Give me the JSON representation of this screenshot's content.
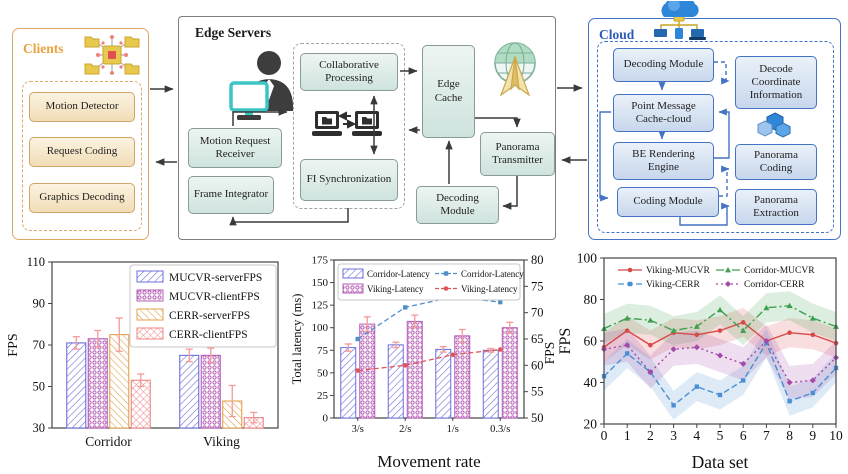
{
  "diagram": {
    "clients": {
      "title": "Clients",
      "modules": [
        "Motion Detector",
        "Request Coding",
        "Graphics Decoding"
      ]
    },
    "edge": {
      "title": "Edge Servers",
      "motion_request_receiver": "Motion Request Receiver",
      "frame_integrator": "Frame Integrator",
      "collaborative_processing": "Collaborative Processing",
      "fi_synchronization": "FI Synchronization",
      "edge_cache": "Edge Cache",
      "panorama_transmitter": "Panorama Transmitter",
      "decoding_module": "Decoding Module"
    },
    "cloud": {
      "title": "Cloud",
      "decoding_module": "Decoding Module",
      "decode_coordinate_information": "Decode Coordinate Information",
      "point_message_cache": "Point Message Cache-cloud",
      "be_rendering_engine": "BE Rendering Engine",
      "panorama_coding": "Panorama Coding",
      "coding_module": "Coding Module",
      "panorama_extraction": "Panorama Extraction"
    }
  },
  "chart_data": [
    {
      "type": "bar",
      "title": "",
      "categories": [
        "Corridor",
        "Viking"
      ],
      "series": [
        {
          "name": "MUCVR-serverFPS",
          "values": [
            71,
            65
          ],
          "errors": [
            3,
            3
          ],
          "color": "#6b6fdc",
          "hatch": "diag"
        },
        {
          "name": "MUCVR-clientFPS",
          "values": [
            73,
            65
          ],
          "errors": [
            4,
            3.5
          ],
          "color": "#b55cb5",
          "hatch": "circles"
        },
        {
          "name": "CERR-serverFPS",
          "values": [
            75,
            43
          ],
          "errors": [
            8,
            7.5
          ],
          "color": "#e2a34f",
          "hatch": "diag2"
        },
        {
          "name": "CERR-clientFPS",
          "values": [
            53,
            35
          ],
          "errors": [
            3,
            2.5
          ],
          "color": "#ee8585",
          "hatch": "cross"
        }
      ],
      "error_color": "#f49a9a",
      "xlabel": "",
      "ylabel": "FPS",
      "ylim": [
        30,
        110
      ],
      "yticks": [
        30,
        50,
        70,
        90,
        110
      ],
      "legend_position": "upper right",
      "grid": false
    },
    {
      "type": "bar+line",
      "title": "",
      "categories": [
        "3/s",
        "2/s",
        "1/s",
        "0.3/s"
      ],
      "bar_series": [
        {
          "name": "Corridor-Latency",
          "values": [
            78,
            81,
            76,
            75
          ],
          "errors": [
            4,
            3,
            3,
            2
          ],
          "color": "#6b6fdc",
          "hatch": "diag"
        },
        {
          "name": "Viking-Latency",
          "values": [
            104,
            107,
            91,
            100
          ],
          "errors": [
            8,
            7,
            7,
            6
          ],
          "color": "#b55cb5",
          "hatch": "circles"
        }
      ],
      "line_series": [
        {
          "name": "Corridor-Latency",
          "values": [
            65,
            71,
            73,
            72
          ],
          "color": "#4f8fc9",
          "marker": "square"
        },
        {
          "name": "Viking-Latency",
          "values": [
            59,
            60,
            62,
            63
          ],
          "color": "#e05656",
          "marker": "circle"
        }
      ],
      "error_color": "#f49a9a",
      "xlabel": "Movement rate",
      "ylabel": "Total latency (ms)",
      "y2label": "FPS",
      "ylim": [
        0,
        175
      ],
      "yticks": [
        0,
        25,
        50,
        75,
        100,
        125,
        150,
        175
      ],
      "y2lim": [
        50,
        80
      ],
      "y2ticks": [
        50,
        55,
        60,
        65,
        70,
        75,
        80
      ],
      "legend_position": "upper left",
      "grid": false
    },
    {
      "type": "line",
      "title": "",
      "x": [
        0,
        1,
        2,
        3,
        4,
        5,
        6,
        7,
        8,
        9,
        10
      ],
      "series": [
        {
          "name": "Viking-MUCVR",
          "values": [
            57,
            65,
            58,
            64,
            63,
            65,
            69,
            60,
            64,
            63,
            59
          ],
          "band": 7,
          "color": "#d84a4a",
          "dash": "solid",
          "marker": "circle"
        },
        {
          "name": "Viking-CERR",
          "values": [
            43,
            54,
            45,
            29,
            38,
            34,
            41,
            59,
            31,
            35,
            47
          ],
          "band": 7,
          "color": "#4a8fd4",
          "dash": "dash",
          "marker": "square"
        },
        {
          "name": "Corridor-MUCVR",
          "values": [
            66,
            71,
            70,
            65,
            67,
            75,
            65,
            76,
            77,
            71,
            67
          ],
          "band": 7,
          "color": "#3fa04f",
          "dash": "dashdot",
          "marker": "triangle"
        },
        {
          "name": "Corridor-CERR",
          "values": [
            56,
            58,
            45,
            56,
            57,
            53,
            49,
            60,
            40,
            41,
            52
          ],
          "band": 8,
          "color": "#a34aa8",
          "dash": "dot",
          "marker": "diamond"
        }
      ],
      "xlabel": "Data set",
      "ylabel": "FPS",
      "ylim": [
        20,
        100
      ],
      "yticks": [
        20,
        40,
        60,
        80,
        100
      ],
      "xticks": [
        0,
        1,
        2,
        3,
        4,
        5,
        6,
        7,
        8,
        9,
        10
      ],
      "legend_position": "upper left",
      "grid": false
    }
  ]
}
